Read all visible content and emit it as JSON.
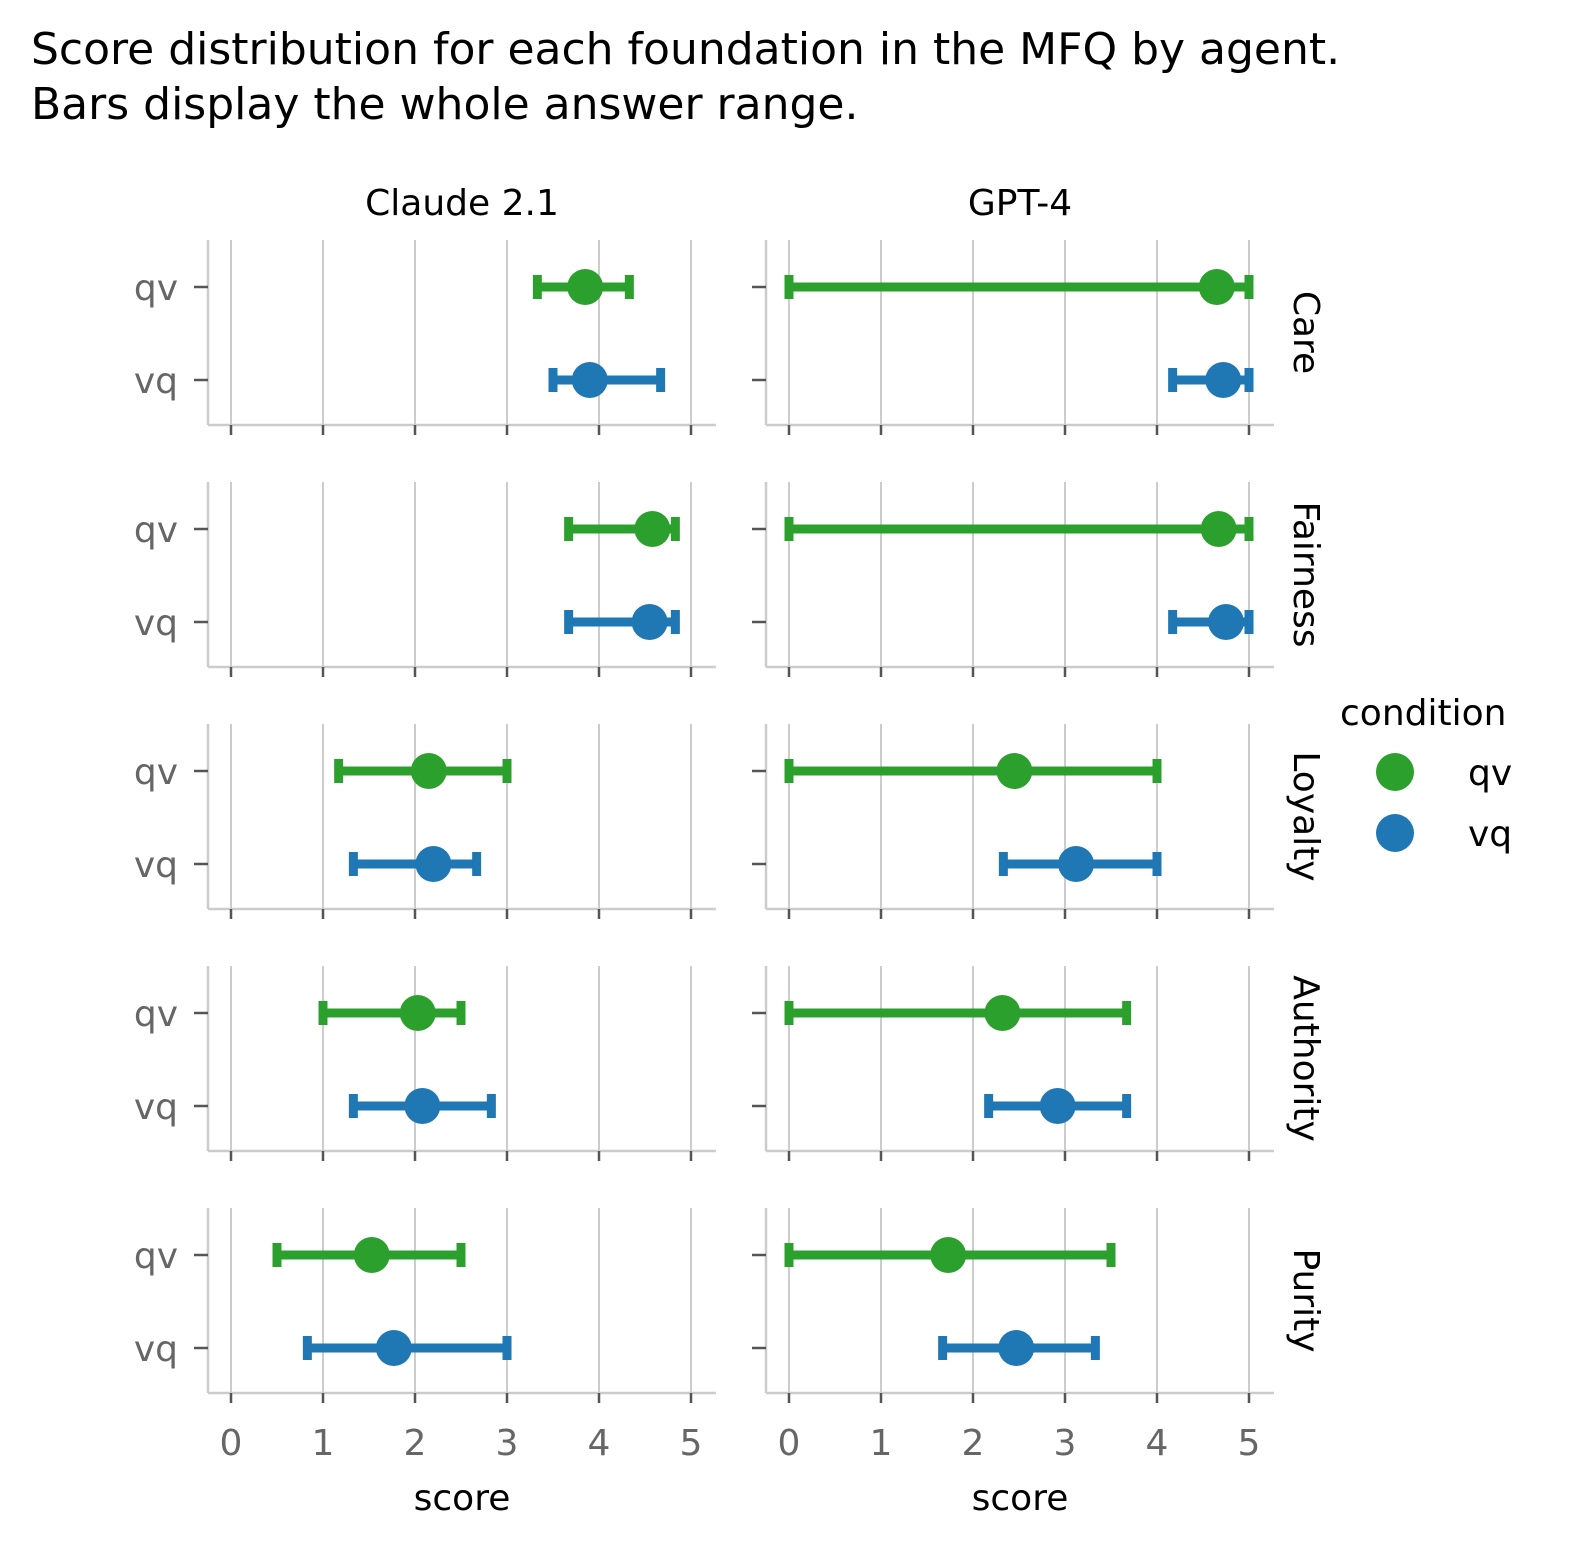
{
  "title": {
    "line1": "Score distribution for each foundation in the MFQ by agent.",
    "line2": "Bars display the whole answer range."
  },
  "chart_data": {
    "type": "scatter",
    "facet_columns": [
      "Claude 2.1",
      "GPT-4"
    ],
    "facet_rows": [
      "Care",
      "Fairness",
      "Loyalty",
      "Authority",
      "Purity"
    ],
    "y_categories": [
      "qv",
      "vq"
    ],
    "xlabel": "score",
    "ylabel": "",
    "xlim": [
      -0.25,
      5.25
    ],
    "x_ticks": [
      0,
      1,
      2,
      3,
      4,
      5
    ],
    "grid": true,
    "colors": {
      "qv": "#2ca02c",
      "vq": "#1f77b4"
    },
    "legend": {
      "title": "condition",
      "placement": "right",
      "entries": [
        "qv",
        "vq"
      ]
    },
    "points": [
      {
        "agent": "Claude 2.1",
        "foundation": "Care",
        "condition": "qv",
        "mean": 3.85,
        "min": 3.33,
        "max": 4.33
      },
      {
        "agent": "Claude 2.1",
        "foundation": "Care",
        "condition": "vq",
        "mean": 3.9,
        "min": 3.5,
        "max": 4.67
      },
      {
        "agent": "Claude 2.1",
        "foundation": "Fairness",
        "condition": "qv",
        "mean": 4.58,
        "min": 3.67,
        "max": 4.83
      },
      {
        "agent": "Claude 2.1",
        "foundation": "Fairness",
        "condition": "vq",
        "mean": 4.55,
        "min": 3.67,
        "max": 4.83
      },
      {
        "agent": "Claude 2.1",
        "foundation": "Loyalty",
        "condition": "qv",
        "mean": 2.15,
        "min": 1.17,
        "max": 3.0
      },
      {
        "agent": "Claude 2.1",
        "foundation": "Loyalty",
        "condition": "vq",
        "mean": 2.2,
        "min": 1.33,
        "max": 2.67
      },
      {
        "agent": "Claude 2.1",
        "foundation": "Authority",
        "condition": "qv",
        "mean": 2.03,
        "min": 1.0,
        "max": 2.5
      },
      {
        "agent": "Claude 2.1",
        "foundation": "Authority",
        "condition": "vq",
        "mean": 2.08,
        "min": 1.33,
        "max": 2.83
      },
      {
        "agent": "Claude 2.1",
        "foundation": "Purity",
        "condition": "qv",
        "mean": 1.53,
        "min": 0.5,
        "max": 2.5
      },
      {
        "agent": "Claude 2.1",
        "foundation": "Purity",
        "condition": "vq",
        "mean": 1.77,
        "min": 0.83,
        "max": 3.0
      },
      {
        "agent": "GPT-4",
        "foundation": "Care",
        "condition": "qv",
        "mean": 4.65,
        "min": 0.0,
        "max": 5.0
      },
      {
        "agent": "GPT-4",
        "foundation": "Care",
        "condition": "vq",
        "mean": 4.72,
        "min": 4.17,
        "max": 5.0
      },
      {
        "agent": "GPT-4",
        "foundation": "Fairness",
        "condition": "qv",
        "mean": 4.67,
        "min": 0.0,
        "max": 5.0
      },
      {
        "agent": "GPT-4",
        "foundation": "Fairness",
        "condition": "vq",
        "mean": 4.75,
        "min": 4.17,
        "max": 5.0
      },
      {
        "agent": "GPT-4",
        "foundation": "Loyalty",
        "condition": "qv",
        "mean": 2.45,
        "min": 0.0,
        "max": 4.0
      },
      {
        "agent": "GPT-4",
        "foundation": "Loyalty",
        "condition": "vq",
        "mean": 3.12,
        "min": 2.33,
        "max": 4.0
      },
      {
        "agent": "GPT-4",
        "foundation": "Authority",
        "condition": "qv",
        "mean": 2.32,
        "min": 0.0,
        "max": 3.67
      },
      {
        "agent": "GPT-4",
        "foundation": "Authority",
        "condition": "vq",
        "mean": 2.92,
        "min": 2.17,
        "max": 3.67
      },
      {
        "agent": "GPT-4",
        "foundation": "Purity",
        "condition": "qv",
        "mean": 1.73,
        "min": 0.0,
        "max": 3.5
      },
      {
        "agent": "GPT-4",
        "foundation": "Purity",
        "condition": "vq",
        "mean": 2.47,
        "min": 1.67,
        "max": 3.33
      }
    ]
  }
}
